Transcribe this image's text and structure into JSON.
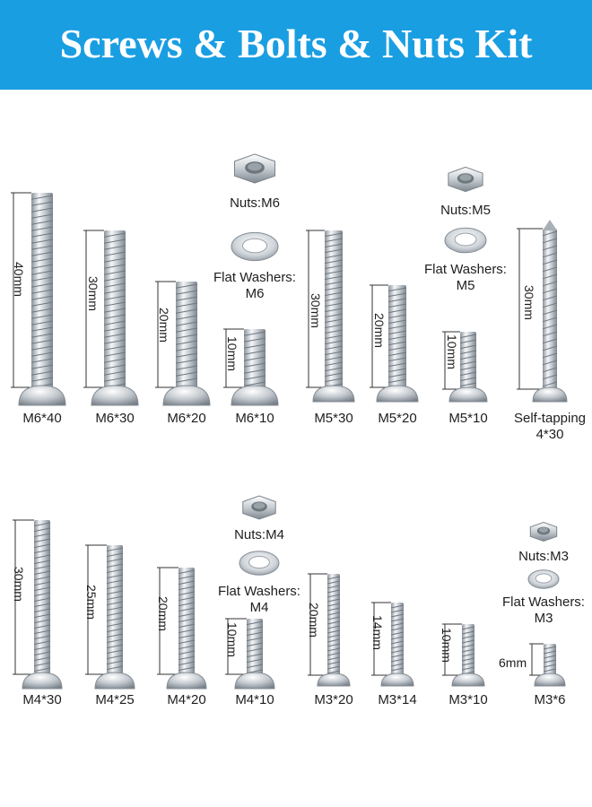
{
  "banner": {
    "title": "Screws & Bolts & Nuts Kit",
    "color": "#1a9ee2"
  },
  "colors": {
    "metal_light": "#f4f6f8",
    "metal_mid": "#b9c0c7",
    "metal_dark": "#7d858d",
    "dimension_line": "#333333"
  },
  "row1": {
    "screws": [
      {
        "label": "M6*40",
        "dimension": "40mm"
      },
      {
        "label": "M6*30",
        "dimension": "30mm"
      },
      {
        "label": "M6*20",
        "dimension": "20mm"
      },
      {
        "label": "M6*10",
        "dimension": "10mm"
      },
      {
        "label": "M5*30",
        "dimension": "30mm"
      },
      {
        "label": "M5*20",
        "dimension": "20mm"
      },
      {
        "label": "M5*10",
        "dimension": "10mm"
      },
      {
        "label": "Self-tapping\n4*30",
        "dimension": "30mm"
      }
    ],
    "hardware": [
      {
        "nut_label": "Nuts:M6",
        "washer_label": "Flat Washers:\nM6"
      },
      {
        "nut_label": "Nuts:M5",
        "washer_label": "Flat Washers:\nM5"
      }
    ]
  },
  "row2": {
    "screws": [
      {
        "label": "M4*30",
        "dimension": "30mm"
      },
      {
        "label": "M4*25",
        "dimension": "25mm"
      },
      {
        "label": "M4*20",
        "dimension": "20mm"
      },
      {
        "label": "M4*10",
        "dimension": "10mm"
      },
      {
        "label": "M3*20",
        "dimension": "20mm"
      },
      {
        "label": "M3*14",
        "dimension": "14mm"
      },
      {
        "label": "M3*10",
        "dimension": "10mm"
      },
      {
        "label": "M3*6",
        "dimension": "6mm"
      }
    ],
    "hardware": [
      {
        "nut_label": "Nuts:M4",
        "washer_label": "Flat Washers:\nM4"
      },
      {
        "nut_label": "Nuts:M3",
        "washer_label": "Flat Washers:\nM3"
      }
    ]
  }
}
